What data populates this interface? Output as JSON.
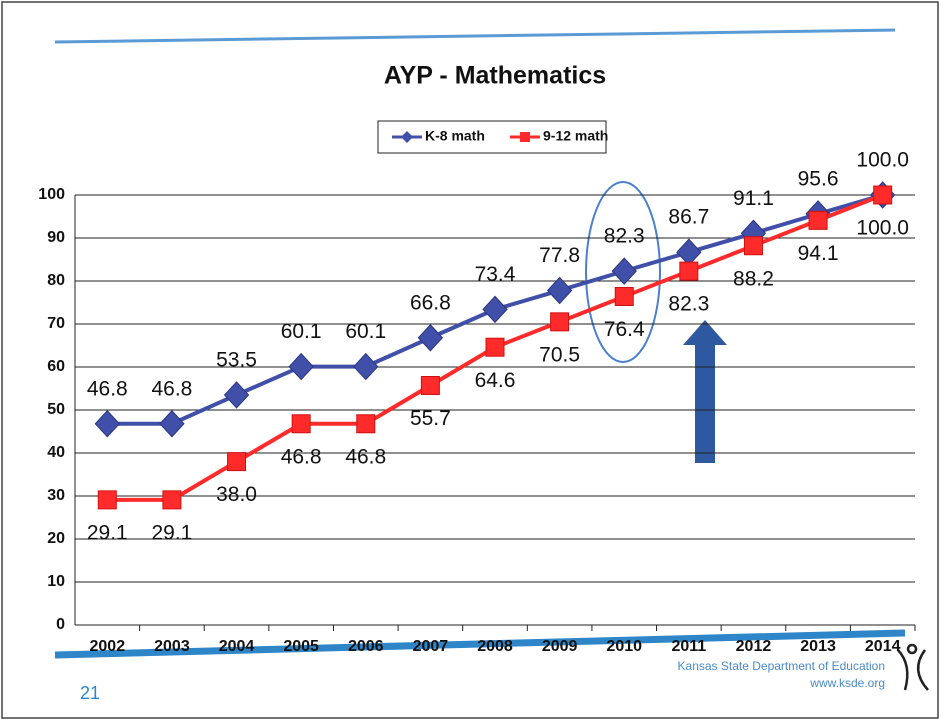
{
  "chart_data": {
    "type": "line",
    "title": "AYP - Mathematics",
    "categories": [
      "2002",
      "2003",
      "2004",
      "2005",
      "2006",
      "2007",
      "2008",
      "2009",
      "2010",
      "2011",
      "2012",
      "2013",
      "2014"
    ],
    "series": [
      {
        "name": "K-8 math",
        "color": "#4050a8",
        "marker": "diamond",
        "values": [
          46.8,
          46.8,
          53.5,
          60.1,
          60.1,
          66.8,
          73.4,
          77.8,
          82.3,
          86.7,
          91.1,
          95.6,
          100.0
        ],
        "value_labels": [
          "46.8",
          "46.8",
          "53.5",
          "60.1",
          "60.1",
          "66.8",
          "73.4",
          "77.8",
          "82.3",
          "86.7",
          "91.1",
          "95.6",
          "100.0"
        ]
      },
      {
        "name": "9-12 math",
        "color": "#ff2b2b",
        "marker": "square",
        "values": [
          29.1,
          29.1,
          38.0,
          46.8,
          46.8,
          55.7,
          64.6,
          70.5,
          76.4,
          82.3,
          88.2,
          94.1,
          100.0
        ],
        "value_labels": [
          "29.1",
          "29.1",
          "38.0",
          "46.8",
          "46.8",
          "55.7",
          "64.6",
          "70.5",
          "76.4",
          "82.3",
          "88.2",
          "94.1",
          "100.0"
        ]
      }
    ],
    "ylim": [
      0,
      100
    ],
    "yticks": [
      0,
      10,
      20,
      30,
      40,
      50,
      60,
      70,
      80,
      90,
      100
    ],
    "grid": true,
    "legend": "top"
  },
  "footer": {
    "page_number": "21",
    "organization": "Kansas State Department of Education",
    "website": "www.ksde.org"
  }
}
